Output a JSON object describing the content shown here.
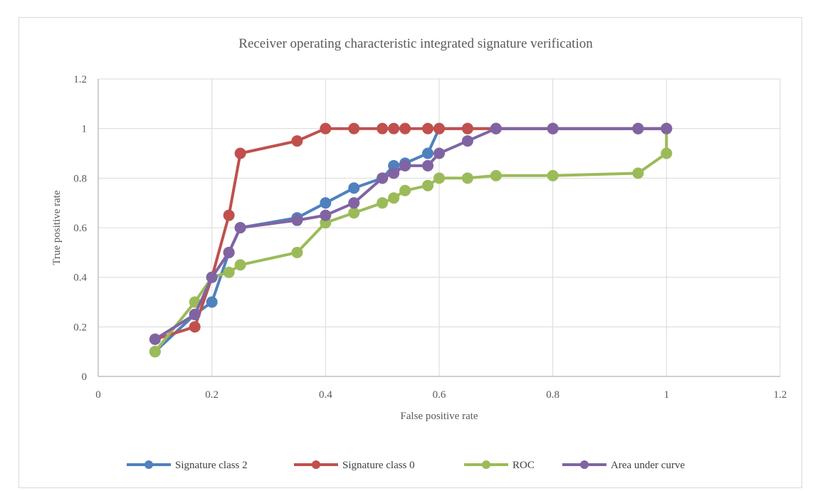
{
  "chart_data": {
    "type": "line",
    "title": "Receiver operating characteristic integrated signature verification",
    "xlabel": "False positive rate",
    "ylabel": "True positive rate",
    "xlim": [
      0,
      1.2
    ],
    "ylim": [
      0,
      1.2
    ],
    "xticks": [
      "0",
      "0.2",
      "0.4",
      "0.6",
      "0.8",
      "1",
      "1.2"
    ],
    "yticks": [
      "0",
      "0.2",
      "0.4",
      "0.6",
      "0.8",
      "1",
      "1.2"
    ],
    "grid": true,
    "legend_position": "bottom",
    "series": [
      {
        "name": "Signature class 2",
        "color": "#4f81bd",
        "points": [
          [
            0.1,
            0.1
          ],
          [
            0.17,
            0.25
          ],
          [
            0.2,
            0.3
          ],
          [
            0.23,
            0.5
          ],
          [
            0.25,
            0.6
          ],
          [
            0.35,
            0.64
          ],
          [
            0.4,
            0.7
          ],
          [
            0.45,
            0.76
          ],
          [
            0.5,
            0.8
          ],
          [
            0.52,
            0.85
          ],
          [
            0.54,
            0.86
          ],
          [
            0.58,
            0.9
          ],
          [
            0.6,
            1.0
          ],
          [
            0.65,
            1.0
          ],
          [
            0.7,
            1.0
          ],
          [
            0.8,
            1.0
          ],
          [
            0.95,
            1.0
          ],
          [
            1.0,
            1.0
          ]
        ]
      },
      {
        "name": "Signature class 0",
        "color": "#c0504d",
        "points": [
          [
            0.1,
            0.15
          ],
          [
            0.17,
            0.2
          ],
          [
            0.2,
            0.4
          ],
          [
            0.23,
            0.65
          ],
          [
            0.25,
            0.9
          ],
          [
            0.35,
            0.95
          ],
          [
            0.4,
            1.0
          ],
          [
            0.45,
            1.0
          ],
          [
            0.5,
            1.0
          ],
          [
            0.52,
            1.0
          ],
          [
            0.54,
            1.0
          ],
          [
            0.58,
            1.0
          ],
          [
            0.6,
            1.0
          ],
          [
            0.65,
            1.0
          ],
          [
            0.7,
            1.0
          ],
          [
            0.8,
            1.0
          ],
          [
            0.95,
            1.0
          ],
          [
            1.0,
            1.0
          ]
        ]
      },
      {
        "name": "ROC",
        "color": "#9bbb59",
        "points": [
          [
            0.1,
            0.1
          ],
          [
            0.17,
            0.3
          ],
          [
            0.2,
            0.4
          ],
          [
            0.23,
            0.42
          ],
          [
            0.25,
            0.45
          ],
          [
            0.35,
            0.5
          ],
          [
            0.4,
            0.62
          ],
          [
            0.45,
            0.66
          ],
          [
            0.5,
            0.7
          ],
          [
            0.52,
            0.72
          ],
          [
            0.54,
            0.75
          ],
          [
            0.58,
            0.77
          ],
          [
            0.6,
            0.8
          ],
          [
            0.65,
            0.8
          ],
          [
            0.7,
            0.81
          ],
          [
            0.8,
            0.81
          ],
          [
            0.95,
            0.82
          ],
          [
            1.0,
            0.9
          ],
          [
            1.0,
            1.0
          ]
        ]
      },
      {
        "name": "Area under curve",
        "color": "#8064a2",
        "points": [
          [
            0.1,
            0.15
          ],
          [
            0.17,
            0.25
          ],
          [
            0.2,
            0.4
          ],
          [
            0.23,
            0.5
          ],
          [
            0.25,
            0.6
          ],
          [
            0.35,
            0.63
          ],
          [
            0.4,
            0.65
          ],
          [
            0.45,
            0.7
          ],
          [
            0.5,
            0.8
          ],
          [
            0.52,
            0.82
          ],
          [
            0.54,
            0.85
          ],
          [
            0.58,
            0.85
          ],
          [
            0.6,
            0.9
          ],
          [
            0.65,
            0.95
          ],
          [
            0.7,
            1.0
          ],
          [
            0.8,
            1.0
          ],
          [
            0.95,
            1.0
          ],
          [
            1.0,
            1.0
          ]
        ]
      }
    ]
  }
}
